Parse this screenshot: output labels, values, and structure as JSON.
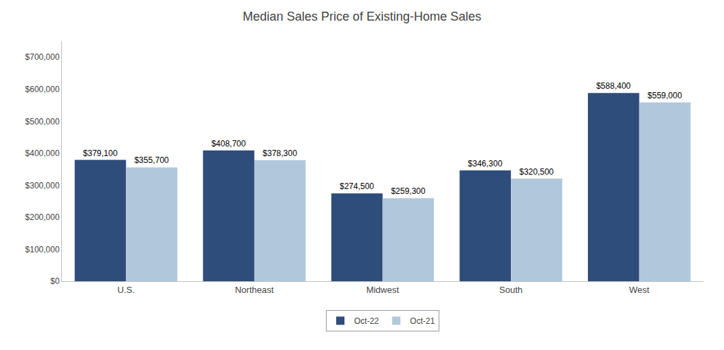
{
  "chart_data": {
    "type": "bar",
    "title": "Median Sales Price of Existing-Home Sales",
    "categories": [
      "U.S.",
      "Northeast",
      "Midwest",
      "South",
      "West"
    ],
    "series": [
      {
        "name": "Oct-22",
        "color": "#2E4D7B",
        "values": [
          379100,
          408700,
          274500,
          346300,
          588400
        ],
        "value_labels": [
          "$379,100",
          "$408,700",
          "$274,500",
          "$346,300",
          "$588,400"
        ]
      },
      {
        "name": "Oct-21",
        "color": "#B0C8DC",
        "values": [
          355700,
          378300,
          259300,
          320500,
          559000
        ],
        "value_labels": [
          "$355,700",
          "$378,300",
          "$259,300",
          "$320,500",
          "$559,000"
        ]
      }
    ],
    "ylim": [
      0,
      750000
    ],
    "yticks": [
      {
        "value": 0,
        "label": "$0"
      },
      {
        "value": 100000,
        "label": "$100,000"
      },
      {
        "value": 200000,
        "label": "$200,000"
      },
      {
        "value": 300000,
        "label": "$300,000"
      },
      {
        "value": 400000,
        "label": "$400,000"
      },
      {
        "value": 500000,
        "label": "$500,000"
      },
      {
        "value": 600000,
        "label": "$600,000"
      },
      {
        "value": 700000,
        "label": "$700,000"
      }
    ],
    "grid": false,
    "legend": "bottom",
    "data_labels": true
  }
}
